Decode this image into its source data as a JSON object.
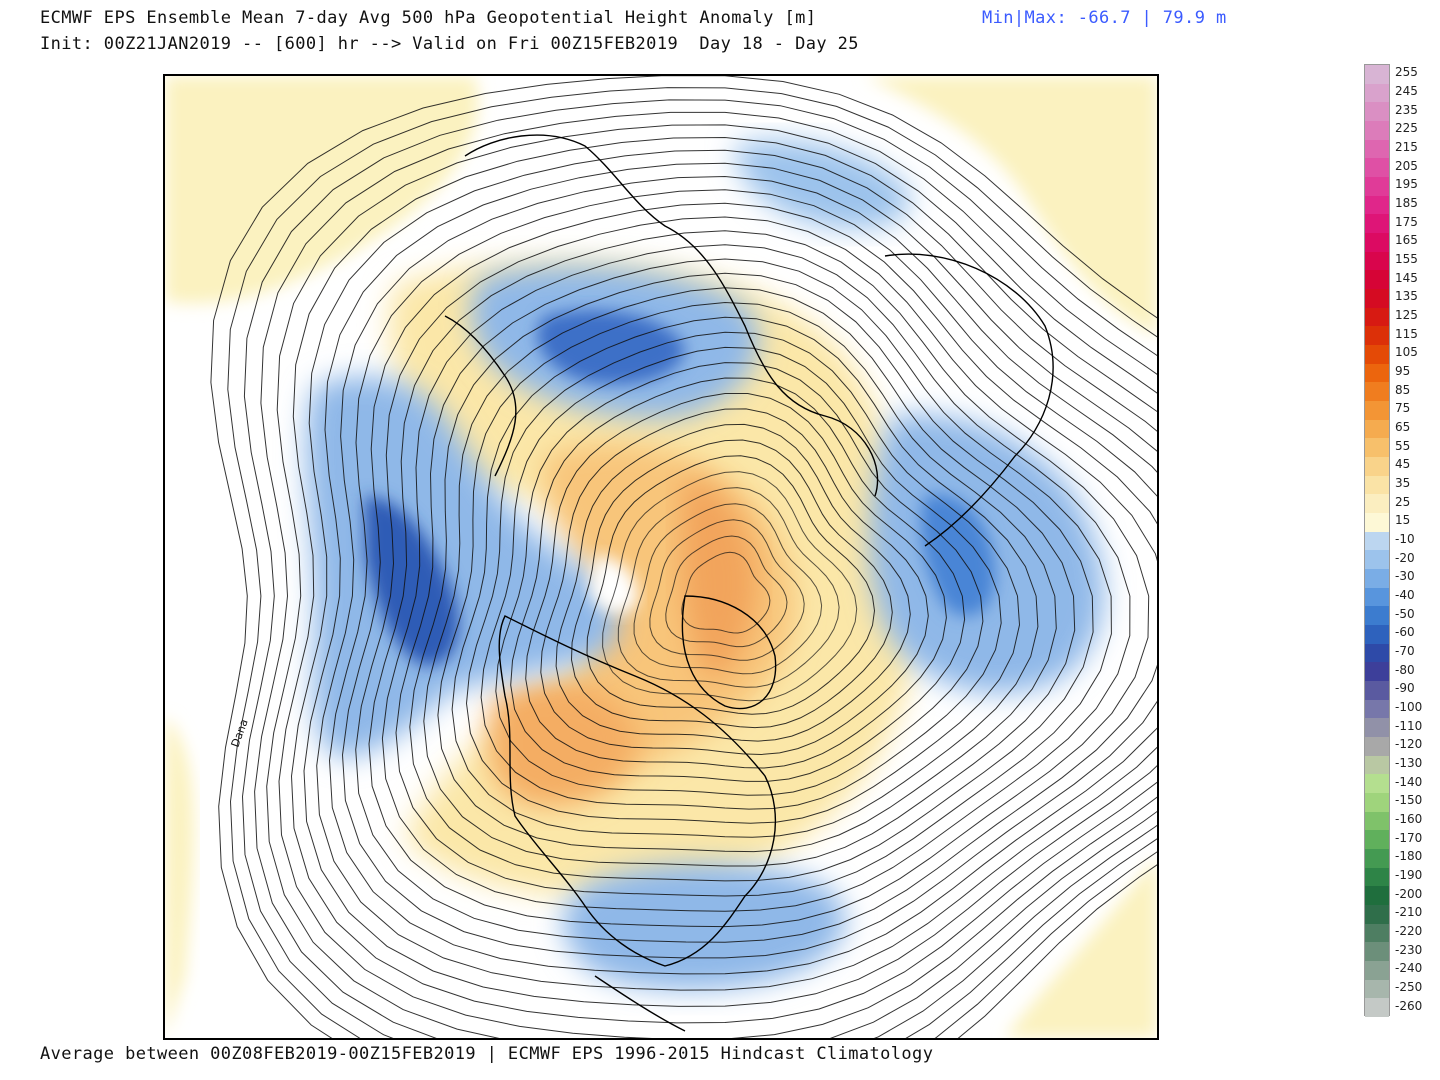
{
  "header": {
    "title": "ECMWF EPS Ensemble Mean 7-day Avg 500 hPa Geopotential Height Anomaly [m]",
    "init_line": "Init: 00Z21JAN2019 -- [600] hr --> Valid on Fri 00Z15FEB2019  Day 18 - Day 25",
    "minmax": "Min|Max: -66.7 | 79.9 m"
  },
  "footer": "Average between 00Z08FEB2019-00Z15FEB2019 | ECMWF EPS 1996-2015 Hindcast Climatology",
  "map": {
    "projection": "north-polar-stereographic",
    "map_label": "Dana"
  },
  "colorbar": {
    "levels": [
      {
        "label": "255",
        "color": "#d8b4d4"
      },
      {
        "label": "245",
        "color": "#d9a2cc"
      },
      {
        "label": "235",
        "color": "#da8fc3"
      },
      {
        "label": "225",
        "color": "#dc7cba"
      },
      {
        "label": "215",
        "color": "#de66b0"
      },
      {
        "label": "205",
        "color": "#df50a5"
      },
      {
        "label": "195",
        "color": "#e03b98"
      },
      {
        "label": "185",
        "color": "#e0268a"
      },
      {
        "label": "175",
        "color": "#de1577"
      },
      {
        "label": "165",
        "color": "#dc0a62"
      },
      {
        "label": "155",
        "color": "#d9054c"
      },
      {
        "label": "145",
        "color": "#d60436"
      },
      {
        "label": "135",
        "color": "#d50b22"
      },
      {
        "label": "125",
        "color": "#d71a12"
      },
      {
        "label": "115",
        "color": "#dc3008"
      },
      {
        "label": "105",
        "color": "#e44a06"
      },
      {
        "label": "95",
        "color": "#ec650d"
      },
      {
        "label": "85",
        "color": "#f07d1f"
      },
      {
        "label": "75",
        "color": "#f39535"
      },
      {
        "label": "65",
        "color": "#f5ab4f"
      },
      {
        "label": "55",
        "color": "#f7c06b"
      },
      {
        "label": "45",
        "color": "#f9d38a"
      },
      {
        "label": "35",
        "color": "#fae3a6"
      },
      {
        "label": "25",
        "color": "#fbeec0"
      },
      {
        "label": "15",
        "color": "#fdf8d6"
      },
      {
        "label": "-10",
        "color": "#bcd6f0"
      },
      {
        "label": "-20",
        "color": "#9cc3ec"
      },
      {
        "label": "-30",
        "color": "#7aade6"
      },
      {
        "label": "-40",
        "color": "#5895dd"
      },
      {
        "label": "-50",
        "color": "#3c7ccf"
      },
      {
        "label": "-60",
        "color": "#2e62bd"
      },
      {
        "label": "-70",
        "color": "#2e4aa8"
      },
      {
        "label": "-80",
        "color": "#3d3f9a"
      },
      {
        "label": "-90",
        "color": "#5a5aa0"
      },
      {
        "label": "-100",
        "color": "#7777aa"
      },
      {
        "label": "-110",
        "color": "#9191a8"
      },
      {
        "label": "-120",
        "color": "#a8a8a8"
      },
      {
        "label": "-130",
        "color": "#b9c8a3"
      },
      {
        "label": "-140",
        "color": "#b4df8f"
      },
      {
        "label": "-150",
        "color": "#9fd47c"
      },
      {
        "label": "-160",
        "color": "#7fc26a"
      },
      {
        "label": "-170",
        "color": "#60b05c"
      },
      {
        "label": "-180",
        "color": "#449a52"
      },
      {
        "label": "-190",
        "color": "#2e8447"
      },
      {
        "label": "-200",
        "color": "#1f6e3d"
      },
      {
        "label": "-210",
        "color": "#2f6e4a"
      },
      {
        "label": "-220",
        "color": "#4e7e62"
      },
      {
        "label": "-230",
        "color": "#6c8f7a"
      },
      {
        "label": "-240",
        "color": "#8aa293"
      },
      {
        "label": "-250",
        "color": "#a7b6ac"
      },
      {
        "label": "-260",
        "color": "#c4c9c6"
      }
    ]
  }
}
